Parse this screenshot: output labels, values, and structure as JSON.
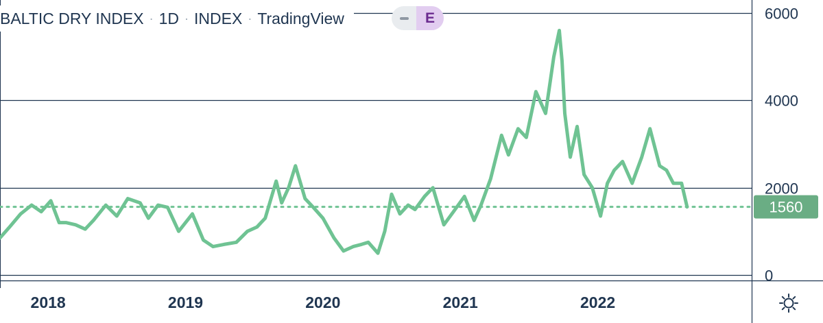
{
  "legend": {
    "symbol": "BALTIC DRY INDEX",
    "interval": "1D",
    "exchange": "INDEX",
    "source": "TradingView",
    "separator": "·",
    "event_badge": "E"
  },
  "last_price_label": "1560",
  "colors": {
    "line": "#6fc393",
    "price_label_bg": "#6aad84",
    "grid": "#1f3550",
    "text": "#1f3550"
  },
  "icons": {
    "settings": "gear-icon",
    "toggle": "minus-icon"
  },
  "chart_data": {
    "type": "line",
    "title": "BALTIC DRY INDEX · 1D · INDEX · TradingView",
    "xlabel": "",
    "ylabel": "",
    "x_ticks": [
      "2018",
      "2019",
      "2020",
      "2021",
      "2022"
    ],
    "y_ticks": [
      0,
      2000,
      4000,
      6000
    ],
    "ylim": [
      0,
      6200
    ],
    "xlim": [
      2017.65,
      2023.12
    ],
    "grid": "horizontal",
    "last_value": 1560,
    "series": [
      {
        "x": [
          2017.65,
          2017.72,
          2017.8,
          2017.88,
          2017.95,
          2018.02,
          2018.08,
          2018.13,
          2018.2,
          2018.27,
          2018.33,
          2018.42,
          2018.5,
          2018.58,
          2018.67,
          2018.73,
          2018.8,
          2018.87,
          2018.95,
          2019.05,
          2019.13,
          2019.2,
          2019.28,
          2019.37,
          2019.45,
          2019.52,
          2019.58,
          2019.66,
          2019.7,
          2019.75,
          2019.8,
          2019.87,
          2019.93,
          2020.0,
          2020.08,
          2020.15,
          2020.22,
          2020.28,
          2020.33,
          2020.4,
          2020.45,
          2020.5,
          2020.56,
          2020.62,
          2020.67,
          2020.74,
          2020.8,
          2020.88,
          2020.95,
          2021.03,
          2021.1,
          2021.15,
          2021.22,
          2021.3,
          2021.35,
          2021.42,
          2021.48,
          2021.55,
          2021.62,
          2021.68,
          2021.72,
          2021.74,
          2021.76,
          2021.8,
          2021.85,
          2021.9,
          2021.96,
          2022.02,
          2022.07,
          2022.12,
          2022.18,
          2022.25,
          2022.32,
          2022.38,
          2022.45,
          2022.5,
          2022.55,
          2022.61,
          2022.65
        ],
        "y": [
          850,
          1100,
          1400,
          1600,
          1450,
          1700,
          1200,
          1200,
          1150,
          1050,
          1250,
          1600,
          1350,
          1750,
          1650,
          1300,
          1600,
          1550,
          1000,
          1400,
          800,
          650,
          700,
          750,
          1000,
          1100,
          1300,
          2150,
          1650,
          2000,
          2500,
          1750,
          1550,
          1300,
          850,
          550,
          650,
          700,
          750,
          500,
          1000,
          1850,
          1400,
          1600,
          1500,
          1800,
          2000,
          1150,
          1450,
          1800,
          1250,
          1600,
          2200,
          3200,
          2750,
          3350,
          3150,
          4200,
          3700,
          5000,
          5600,
          4900,
          3700,
          2700,
          3400,
          2300,
          2000,
          1350,
          2100,
          2400,
          2600,
          2100,
          2700,
          3350,
          2500,
          2400,
          2100,
          2100,
          1560
        ]
      }
    ]
  }
}
